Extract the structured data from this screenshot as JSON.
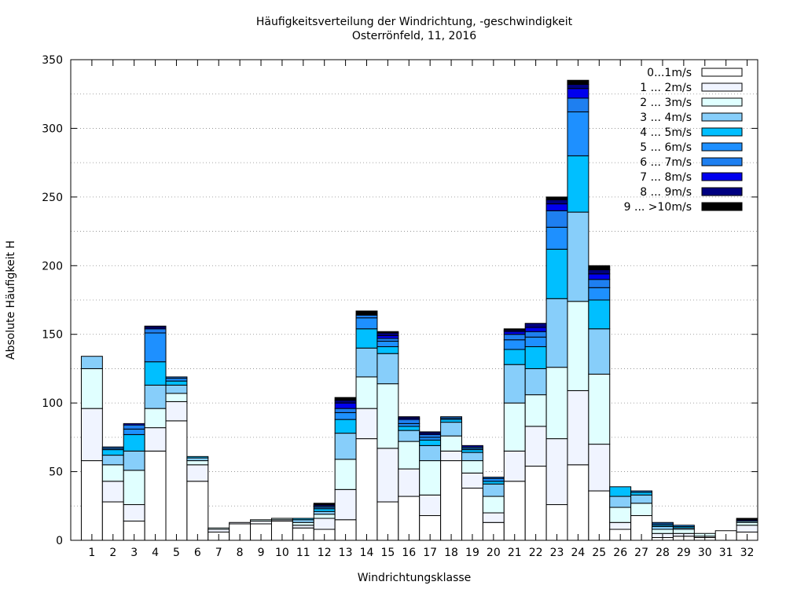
{
  "chart_data": {
    "type": "bar",
    "stacked": true,
    "title": "Häufigkeitsverteilung der Windrichtung, -geschwindigkeit",
    "subtitle": "Osterrönfeld, 11, 2016",
    "xlabel": "Windrichtungsklasse",
    "ylabel": "Absolute Häufigkeit H",
    "ylim": [
      0,
      350
    ],
    "yticks": [
      0,
      50,
      100,
      150,
      200,
      250,
      300,
      350
    ],
    "grid": "horizontal dotted",
    "legend_position": "top-right",
    "categories": [
      "1",
      "2",
      "3",
      "4",
      "5",
      "6",
      "7",
      "8",
      "9",
      "10",
      "11",
      "12",
      "13",
      "14",
      "15",
      "16",
      "17",
      "18",
      "19",
      "20",
      "21",
      "22",
      "23",
      "24",
      "25",
      "26",
      "27",
      "28",
      "29",
      "30",
      "31",
      "32"
    ],
    "series": [
      {
        "name": "0...1m/s",
        "color": "#ffffff",
        "values": [
          58,
          28,
          14,
          65,
          87,
          43,
          6,
          12,
          12,
          14,
          9,
          8,
          15,
          74,
          28,
          32,
          18,
          58,
          38,
          13,
          43,
          54,
          26,
          55,
          36,
          8,
          18,
          2,
          3,
          2,
          7,
          6
        ]
      },
      {
        "name": "1 ... 2m/s",
        "color": "#f0f4ff",
        "values": [
          38,
          15,
          12,
          17,
          14,
          12,
          2,
          1,
          2,
          1,
          2,
          8,
          22,
          22,
          39,
          20,
          15,
          7,
          11,
          7,
          22,
          29,
          48,
          54,
          34,
          5,
          0,
          3,
          2,
          1,
          0,
          5
        ]
      },
      {
        "name": "2 ... 3m/s",
        "color": "#e0ffff",
        "values": [
          29,
          12,
          25,
          14,
          6,
          3,
          1,
          0,
          1,
          1,
          2,
          3,
          22,
          23,
          47,
          20,
          25,
          11,
          9,
          12,
          35,
          23,
          52,
          65,
          51,
          11,
          9,
          3,
          3,
          2,
          0,
          2
        ]
      },
      {
        "name": "3 ... 4m/s",
        "color": "#87cefa",
        "values": [
          9,
          7,
          14,
          17,
          6,
          2,
          0,
          0,
          0,
          0,
          2,
          2,
          19,
          21,
          22,
          8,
          11,
          10,
          6,
          9,
          28,
          19,
          50,
          65,
          33,
          8,
          6,
          2,
          1,
          0,
          0,
          1
        ]
      },
      {
        "name": "4 ... 5m/s",
        "color": "#00bfff",
        "values": [
          0,
          4,
          12,
          17,
          3,
          1,
          0,
          0,
          0,
          0,
          1,
          2,
          10,
          14,
          5,
          3,
          4,
          2,
          2,
          2,
          11,
          16,
          36,
          41,
          21,
          7,
          2,
          1,
          1,
          0,
          0,
          0
        ]
      },
      {
        "name": "5 ... 6m/s",
        "color": "#1e90ff",
        "values": [
          0,
          1,
          4,
          21,
          2,
          0,
          0,
          0,
          0,
          0,
          0,
          1,
          5,
          8,
          4,
          2,
          2,
          1,
          1,
          2,
          7,
          7,
          16,
          32,
          9,
          0,
          1,
          1,
          1,
          0,
          0,
          0
        ]
      },
      {
        "name": "6 ... 7m/s",
        "color": "#1e7ff0",
        "values": [
          0,
          1,
          3,
          3,
          1,
          0,
          0,
          0,
          0,
          0,
          0,
          1,
          3,
          2,
          2,
          3,
          2,
          1,
          1,
          1,
          4,
          4,
          12,
          10,
          6,
          0,
          0,
          1,
          0,
          0,
          0,
          0
        ]
      },
      {
        "name": "7 ... 8m/s",
        "color": "#0000ee",
        "values": [
          0,
          0,
          1,
          1,
          0,
          0,
          0,
          0,
          0,
          0,
          0,
          0,
          4,
          0,
          2,
          1,
          1,
          0,
          1,
          0,
          2,
          3,
          5,
          7,
          4,
          0,
          0,
          0,
          0,
          0,
          0,
          0
        ]
      },
      {
        "name": "8 ... 9m/s",
        "color": "#000080",
        "values": [
          0,
          0,
          0,
          1,
          0,
          0,
          0,
          0,
          0,
          0,
          0,
          1,
          2,
          0,
          2,
          1,
          1,
          0,
          0,
          0,
          1,
          3,
          3,
          3,
          3,
          0,
          0,
          0,
          0,
          0,
          0,
          1
        ]
      },
      {
        "name": "9 ... >10m/s",
        "color": "#000000",
        "values": [
          0,
          0,
          0,
          0,
          0,
          0,
          0,
          0,
          0,
          0,
          0,
          1,
          2,
          3,
          1,
          0,
          0,
          0,
          0,
          0,
          1,
          0,
          2,
          3,
          3,
          0,
          0,
          0,
          0,
          0,
          0,
          1
        ]
      }
    ]
  }
}
